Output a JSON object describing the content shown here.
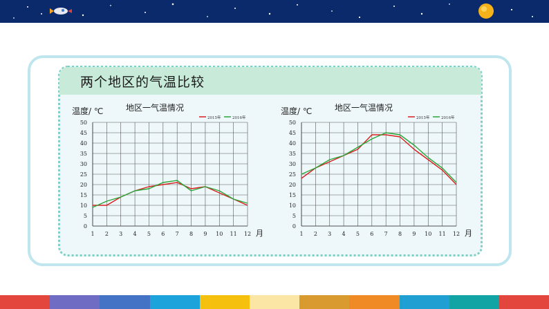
{
  "slide": {
    "title": "两个地区的气温比较"
  },
  "colors": {
    "banner": "#0b2a6b",
    "series_2015": "#d81e1e",
    "series_2016": "#2aa639",
    "grid": "#555555",
    "footer_stripes": [
      "#e2463d",
      "#6f6cc3",
      "#4472c4",
      "#1da3dc",
      "#f6c10e",
      "#fbe6a6",
      "#d99b30",
      "#f08a24",
      "#1f9fd2",
      "#12a4a4",
      "#e2463d"
    ]
  },
  "icons": [
    "rocket-icon",
    "sun-icon",
    "stars-decoration"
  ],
  "chart_data": [
    {
      "type": "line",
      "title": "地区一气温情况",
      "ylabel": "温度/ ℃",
      "xlabel": "月",
      "x": [
        1,
        2,
        3,
        4,
        5,
        6,
        7,
        8,
        9,
        10,
        11,
        12
      ],
      "ylim": [
        0,
        50
      ],
      "yticks": [
        0,
        5,
        10,
        15,
        20,
        25,
        30,
        35,
        40,
        45,
        50
      ],
      "grid": true,
      "legend_position": "top-right",
      "series": [
        {
          "name": "2015年",
          "color": "#d81e1e",
          "values": [
            10,
            10,
            14,
            17,
            19,
            20,
            21,
            18,
            19,
            16,
            13,
            10
          ]
        },
        {
          "name": "2016年",
          "color": "#2aa639",
          "values": [
            9,
            12,
            14,
            17,
            18,
            21,
            22,
            17,
            19,
            17,
            13,
            11
          ]
        }
      ]
    },
    {
      "type": "line",
      "title": "地区一气温情况",
      "ylabel": "温度/ ℃",
      "xlabel": "月",
      "x": [
        1,
        2,
        3,
        4,
        5,
        6,
        7,
        8,
        9,
        10,
        11,
        12
      ],
      "ylim": [
        0,
        50
      ],
      "yticks": [
        0,
        5,
        10,
        15,
        20,
        25,
        30,
        35,
        40,
        45,
        50
      ],
      "grid": true,
      "legend_position": "top-right",
      "series": [
        {
          "name": "2015年",
          "color": "#d81e1e",
          "values": [
            23,
            28,
            31,
            34,
            37,
            44,
            44,
            43,
            37,
            32,
            27,
            20
          ]
        },
        {
          "name": "2016年",
          "color": "#2aa639",
          "values": [
            25,
            28,
            32,
            34,
            38,
            42,
            45,
            44,
            39,
            33,
            28,
            21
          ]
        }
      ]
    }
  ]
}
